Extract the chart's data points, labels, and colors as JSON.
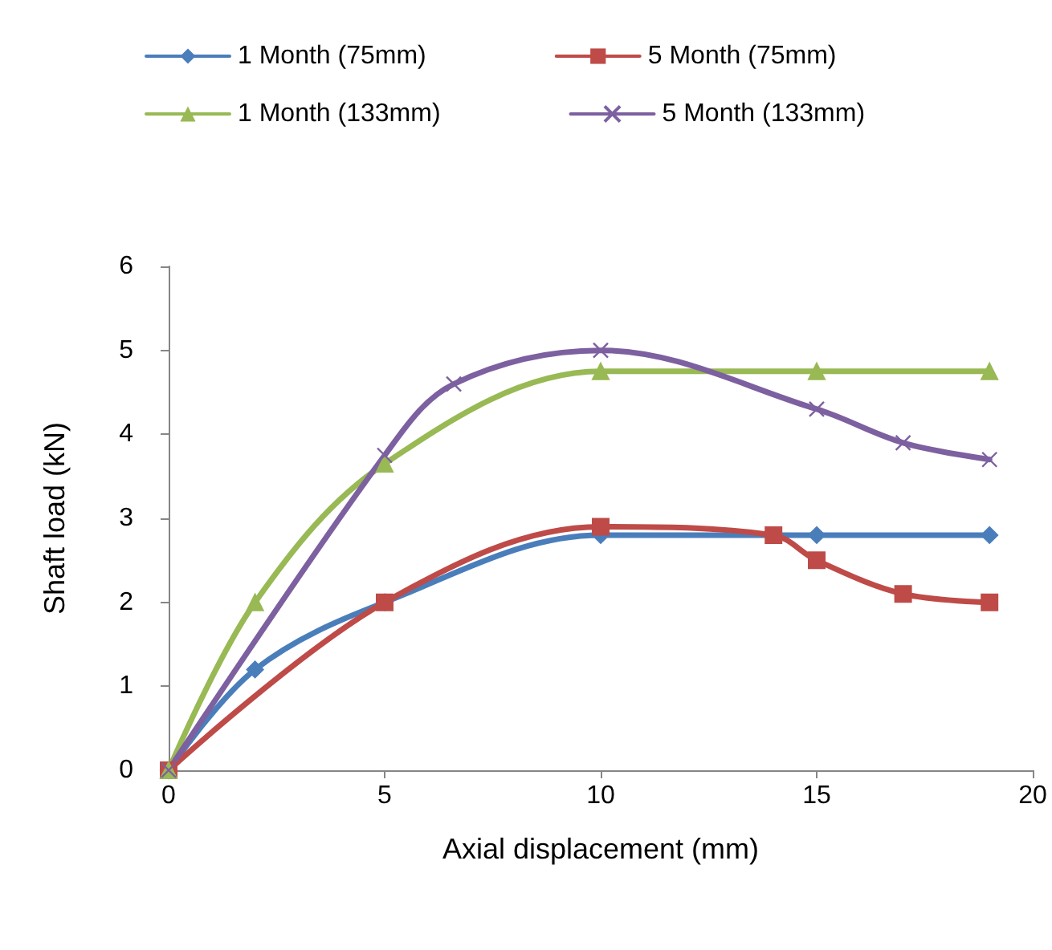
{
  "chart_data": {
    "type": "line",
    "xlabel": "Axial displacement (mm)",
    "ylabel": "Shaft load (kN)",
    "xlim": [
      0,
      20
    ],
    "xticks": [
      0,
      5,
      10,
      15,
      20
    ],
    "ylim": [
      0,
      6
    ],
    "yticks": [
      0,
      1,
      2,
      3,
      4,
      5,
      6
    ],
    "grid": false,
    "legend": "top",
    "series": [
      {
        "name": "1 Month (75mm)",
        "color": "#4a7ebb",
        "marker": "diamond",
        "x": [
          0,
          2,
          5,
          10,
          15,
          19
        ],
        "values": [
          0,
          1.2,
          2.0,
          2.8,
          2.8,
          2.8
        ]
      },
      {
        "name": "5 Month (75mm)",
        "color": "#be4b48",
        "marker": "square",
        "x": [
          0,
          5,
          10,
          14,
          15,
          17,
          19
        ],
        "values": [
          0,
          2.0,
          2.9,
          2.8,
          2.5,
          2.1,
          2.0
        ]
      },
      {
        "name": "1 Month (133mm)",
        "color": "#98b954",
        "marker": "triangle",
        "x": [
          0,
          2,
          5,
          10,
          15,
          19
        ],
        "values": [
          0,
          2.0,
          3.65,
          4.75,
          4.75,
          4.75
        ]
      },
      {
        "name": "5 Month (133mm)",
        "color": "#7d60a0",
        "marker": "cross",
        "x": [
          0,
          5,
          6.6,
          10,
          15,
          17,
          19
        ],
        "values": [
          0,
          3.75,
          4.6,
          5.0,
          4.3,
          3.9,
          3.7
        ]
      }
    ]
  }
}
